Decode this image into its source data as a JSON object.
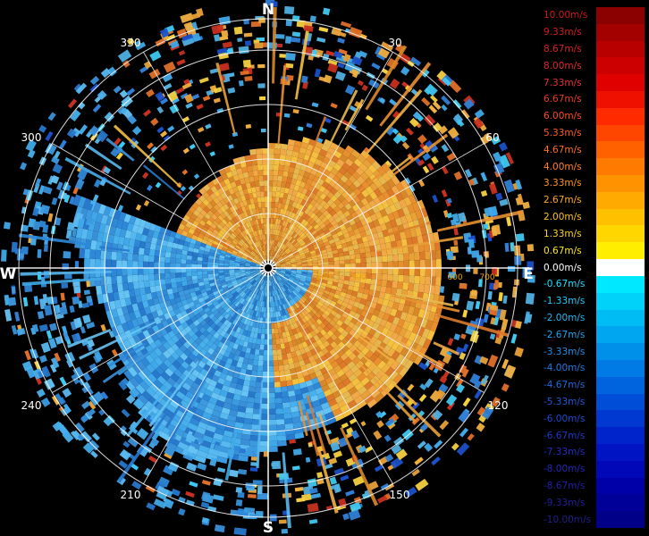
{
  "compass": {
    "north": "N",
    "east": "E",
    "south": "S",
    "west": "W"
  },
  "bearings": [
    "30",
    "60",
    "120",
    "150",
    "210",
    "240",
    "300",
    "330"
  ],
  "range_labels": [
    "200",
    "300",
    "600",
    "700"
  ],
  "velocity_scale": [
    {
      "label": "10.00m/s",
      "color": "#8b0000",
      "text": "#cc1a1a"
    },
    {
      "label": "9.33m/s",
      "color": "#a30000",
      "text": "#d21e1e"
    },
    {
      "label": "8.67m/s",
      "color": "#b80000",
      "text": "#d82222"
    },
    {
      "label": "8.00m/s",
      "color": "#cc0000",
      "text": "#e02828"
    },
    {
      "label": "7.33m/s",
      "color": "#e00000",
      "text": "#e83030"
    },
    {
      "label": "6.67m/s",
      "color": "#f01000",
      "text": "#f03a20"
    },
    {
      "label": "6.00m/s",
      "color": "#ff2a00",
      "text": "#ff4a20"
    },
    {
      "label": "5.33m/s",
      "color": "#ff4600",
      "text": "#ff5a20"
    },
    {
      "label": "4.67m/s",
      "color": "#ff6000",
      "text": "#ff6d20"
    },
    {
      "label": "4.00m/s",
      "color": "#ff7a00",
      "text": "#ff8020"
    },
    {
      "label": "3.33m/s",
      "color": "#ff9200",
      "text": "#ff9620"
    },
    {
      "label": "2.67m/s",
      "color": "#ffaa00",
      "text": "#ffaa20"
    },
    {
      "label": "2.00m/s",
      "color": "#ffc000",
      "text": "#ffc020"
    },
    {
      "label": "1.33m/s",
      "color": "#ffd600",
      "text": "#ffd620"
    },
    {
      "label": "0.67m/s",
      "color": "#ffee00",
      "text": "#ffe820"
    },
    {
      "label": "0.00m/s",
      "color": "#ffffff",
      "text": "#ffffff"
    },
    {
      "label": "-0.67m/s",
      "color": "#00e8ff",
      "text": "#20e0ff"
    },
    {
      "label": "-1.33m/s",
      "color": "#00d2fa",
      "text": "#20ccfa"
    },
    {
      "label": "-2.00m/s",
      "color": "#00bcf5",
      "text": "#20b8f5"
    },
    {
      "label": "-2.67m/s",
      "color": "#00a6f0",
      "text": "#20a4f0"
    },
    {
      "label": "-3.33m/s",
      "color": "#0090ea",
      "text": "#2090ea"
    },
    {
      "label": "-4.00m/s",
      "color": "#007ae4",
      "text": "#207ae4"
    },
    {
      "label": "-4.67m/s",
      "color": "#0064de",
      "text": "#2068de"
    },
    {
      "label": "-5.33m/s",
      "color": "#004ed8",
      "text": "#2058d8"
    },
    {
      "label": "-6.00m/s",
      "color": "#0038d2",
      "text": "#2048d2"
    },
    {
      "label": "-6.67m/s",
      "color": "#0024cc",
      "text": "#2038cc"
    },
    {
      "label": "-7.33m/s",
      "color": "#0014c4",
      "text": "#2030c4"
    },
    {
      "label": "-8.00m/s",
      "color": "#0008b8",
      "text": "#2028b8"
    },
    {
      "label": "-8.67m/s",
      "color": "#0000a8",
      "text": "#2020a8"
    },
    {
      "label": "-9.33m/s",
      "color": "#000098",
      "text": "#202098"
    },
    {
      "label": "-10.00m/s",
      "color": "#000088",
      "text": "#202088"
    }
  ]
}
